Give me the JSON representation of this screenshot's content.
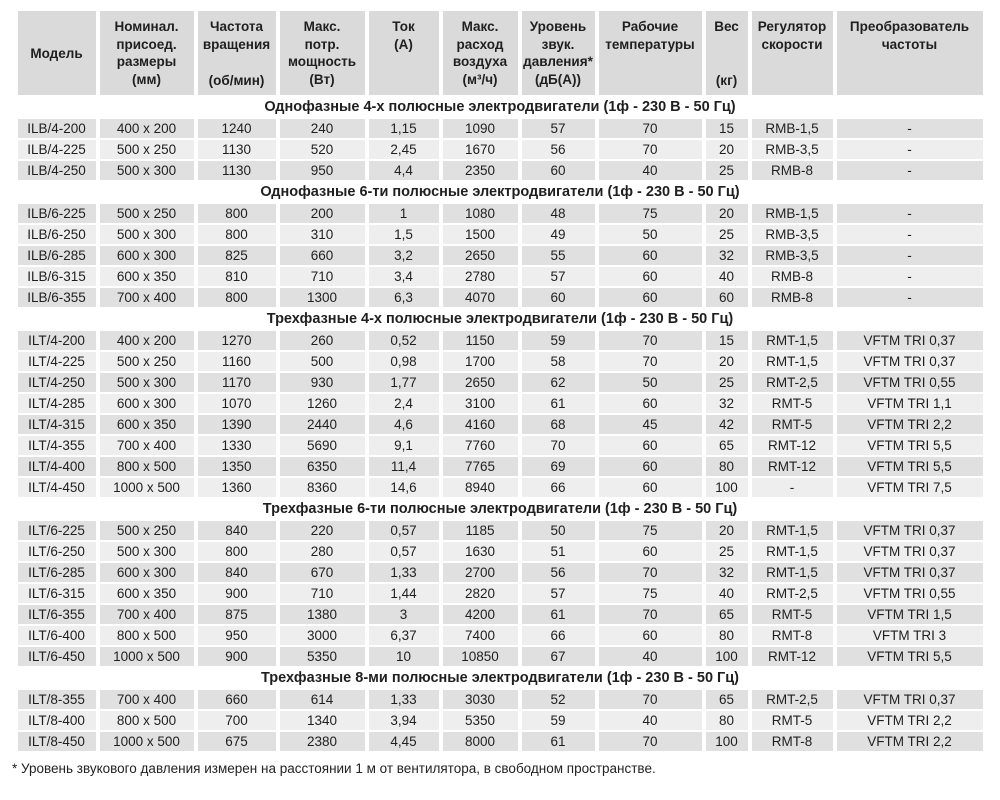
{
  "colors": {
    "header_bg": "#dadada",
    "row_dark": "#e0e0e0",
    "row_light": "#eeeeee",
    "text": "#1f1f1f"
  },
  "table": {
    "columns": [
      {
        "label_lines": [
          "Модель"
        ],
        "unit": ""
      },
      {
        "label_lines": [
          "Номинал.",
          "присоед.",
          "размеры"
        ],
        "unit": "(мм)"
      },
      {
        "label_lines": [
          "Частота",
          "вращения"
        ],
        "unit": "(об/мин)"
      },
      {
        "label_lines": [
          "Макс.",
          "потр.",
          "мощность"
        ],
        "unit": "(Вт)"
      },
      {
        "label_lines": [
          "Ток"
        ],
        "unit": "(А)"
      },
      {
        "label_lines": [
          "Макс.",
          "расход",
          "воздуха"
        ],
        "unit": "(м³/ч)"
      },
      {
        "label_lines": [
          "Уровень",
          "звук.",
          "давления*"
        ],
        "unit": "(дБ(А))"
      },
      {
        "label_lines": [
          "Рабочие",
          "температуры"
        ],
        "unit": ""
      },
      {
        "label_lines": [
          "Вес"
        ],
        "unit": "(кг)"
      },
      {
        "label_lines": [
          "Регулятор",
          "скорости"
        ],
        "unit": ""
      },
      {
        "label_lines": [
          "Преобразователь",
          "частоты"
        ],
        "unit": ""
      }
    ],
    "sections": [
      {
        "title": "Однофазные 4-х полюсные электродвигатели (1ф - 230 В - 50 Гц)",
        "rows": [
          [
            "ILB/4-200",
            "400 x 200",
            "1240",
            "240",
            "1,15",
            "1090",
            "57",
            "70",
            "15",
            "RMB-1,5",
            "-"
          ],
          [
            "ILB/4-225",
            "500 x 250",
            "1130",
            "520",
            "2,45",
            "1670",
            "56",
            "70",
            "20",
            "RMB-3,5",
            "-"
          ],
          [
            "ILB/4-250",
            "500 x 300",
            "1130",
            "950",
            "4,4",
            "2350",
            "60",
            "40",
            "25",
            "RMB-8",
            "-"
          ]
        ]
      },
      {
        "title": "Однофазные 6-ти полюсные электродвигатели (1ф - 230 В - 50 Гц)",
        "rows": [
          [
            "ILB/6-225",
            "500 x 250",
            "800",
            "200",
            "1",
            "1080",
            "48",
            "75",
            "20",
            "RMB-1,5",
            "-"
          ],
          [
            "ILB/6-250",
            "500 x 300",
            "800",
            "310",
            "1,5",
            "1500",
            "49",
            "50",
            "25",
            "RMB-3,5",
            "-"
          ],
          [
            "ILB/6-285",
            "600 x 300",
            "825",
            "660",
            "3,2",
            "2650",
            "55",
            "60",
            "32",
            "RMB-3,5",
            "-"
          ],
          [
            "ILB/6-315",
            "600 x 350",
            "810",
            "710",
            "3,4",
            "2780",
            "57",
            "60",
            "40",
            "RMB-8",
            "-"
          ],
          [
            "ILB/6-355",
            "700 x 400",
            "800",
            "1300",
            "6,3",
            "4070",
            "60",
            "60",
            "60",
            "RMB-8",
            "-"
          ]
        ]
      },
      {
        "title": "Трехфазные 4-х полюсные электродвигатели (1ф - 230 В - 50 Гц)",
        "rows": [
          [
            "ILT/4-200",
            "400 x 200",
            "1270",
            "260",
            "0,52",
            "1150",
            "59",
            "70",
            "15",
            "RMT-1,5",
            "VFTM TRI 0,37"
          ],
          [
            "ILT/4-225",
            "500 x 250",
            "1160",
            "500",
            "0,98",
            "1700",
            "58",
            "70",
            "20",
            "RMT-1,5",
            "VFTM TRI 0,37"
          ],
          [
            "ILT/4-250",
            "500 x 300",
            "1170",
            "930",
            "1,77",
            "2650",
            "62",
            "50",
            "25",
            "RMT-2,5",
            "VFTM TRI 0,55"
          ],
          [
            "ILT/4-285",
            "600 x 300",
            "1070",
            "1260",
            "2,4",
            "3100",
            "61",
            "60",
            "32",
            "RMT-5",
            "VFTM TRI 1,1"
          ],
          [
            "ILT/4-315",
            "600 x 350",
            "1390",
            "2440",
            "4,6",
            "4160",
            "68",
            "45",
            "42",
            "RMT-5",
            "VFTM TRI 2,2"
          ],
          [
            "ILT/4-355",
            "700 x 400",
            "1330",
            "5690",
            "9,1",
            "7760",
            "70",
            "60",
            "65",
            "RMT-12",
            "VFTM TRI 5,5"
          ],
          [
            "ILT/4-400",
            "800 x 500",
            "1350",
            "6350",
            "11,4",
            "7765",
            "69",
            "60",
            "80",
            "RMT-12",
            "VFTM TRI 5,5"
          ],
          [
            "ILT/4-450",
            "1000 x 500",
            "1360",
            "8360",
            "14,6",
            "8940",
            "66",
            "60",
            "100",
            "-",
            "VFTM TRI 7,5"
          ]
        ]
      },
      {
        "title": "Трехфазные 6-ти полюсные электродвигатели (1ф - 230 В - 50 Гц)",
        "rows": [
          [
            "ILT/6-225",
            "500 x 250",
            "840",
            "220",
            "0,57",
            "1185",
            "50",
            "75",
            "20",
            "RMT-1,5",
            "VFTM TRI 0,37"
          ],
          [
            "ILT/6-250",
            "500 x 300",
            "800",
            "280",
            "0,57",
            "1630",
            "51",
            "60",
            "25",
            "RMT-1,5",
            "VFTM TRI 0,37"
          ],
          [
            "ILT/6-285",
            "600 x 300",
            "840",
            "670",
            "1,33",
            "2700",
            "56",
            "70",
            "32",
            "RMT-1,5",
            "VFTM TRI 0,37"
          ],
          [
            "ILT/6-315",
            "600 x 350",
            "900",
            "710",
            "1,44",
            "2820",
            "57",
            "75",
            "40",
            "RMT-2,5",
            "VFTM TRI 0,55"
          ],
          [
            "ILT/6-355",
            "700 x 400",
            "875",
            "1380",
            "3",
            "4200",
            "61",
            "70",
            "65",
            "RMT-5",
            "VFTM TRI 1,5"
          ],
          [
            "ILT/6-400",
            "800 x 500",
            "950",
            "3000",
            "6,37",
            "7400",
            "66",
            "60",
            "80",
            "RMT-8",
            "VFTM TRI 3"
          ],
          [
            "ILT/6-450",
            "1000 x 500",
            "900",
            "5350",
            "10",
            "10850",
            "67",
            "40",
            "100",
            "RMT-12",
            "VFTM TRI 5,5"
          ]
        ]
      },
      {
        "title": "Трехфазные 8-ми полюсные электродвигатели (1ф - 230 В - 50 Гц)",
        "rows": [
          [
            "ILT/8-355",
            "700 x 400",
            "660",
            "614",
            "1,33",
            "3030",
            "52",
            "70",
            "65",
            "RMT-2,5",
            "VFTM TRI 0,37"
          ],
          [
            "ILT/8-400",
            "800 x 500",
            "700",
            "1340",
            "3,94",
            "5350",
            "59",
            "40",
            "80",
            "RMT-5",
            "VFTM TRI 2,2"
          ],
          [
            "ILT/8-450",
            "1000 x 500",
            "675",
            "2380",
            "4,45",
            "8000",
            "61",
            "70",
            "100",
            "RMT-8",
            "VFTM TRI 2,2"
          ]
        ]
      }
    ]
  },
  "footnote": "* Уровень звукового давления измерен на расстоянии 1 м от вентилятора, в свободном пространстве."
}
